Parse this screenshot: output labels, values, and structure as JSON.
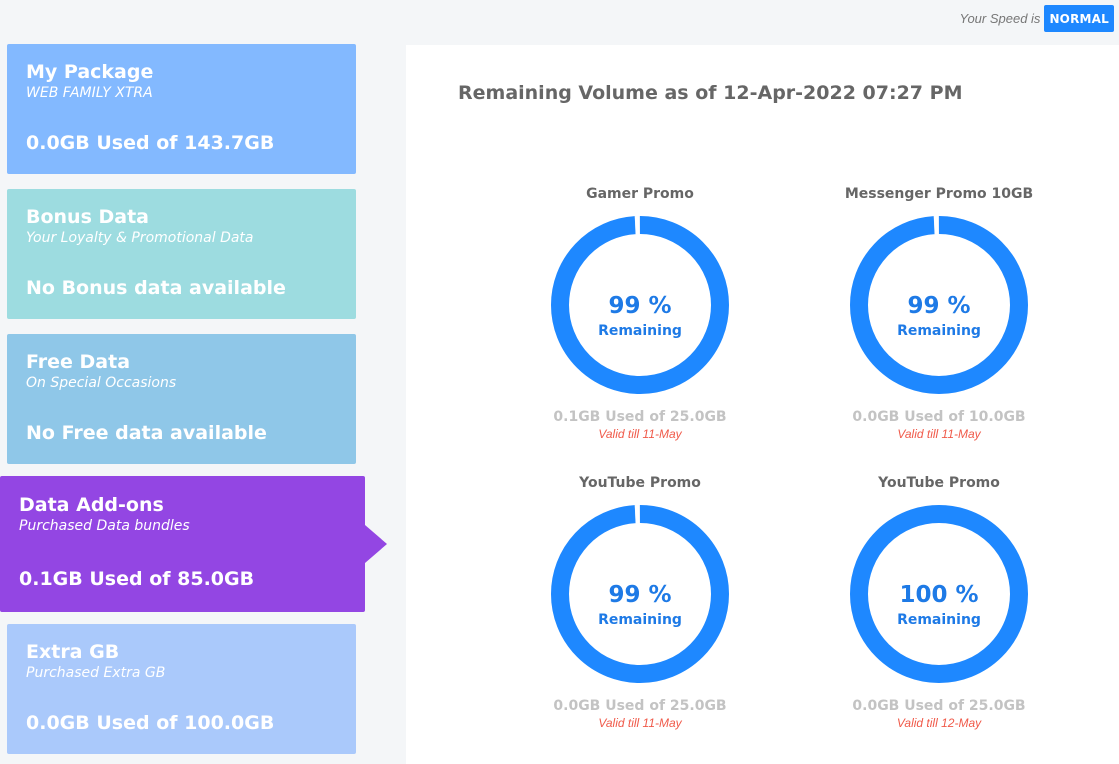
{
  "speed": {
    "label": "Your Speed is",
    "value": "NORMAL",
    "color": "#1e88ff"
  },
  "cards": [
    {
      "title": "My Package",
      "subtitle": "WEB FAMILY XTRA",
      "usage": "0.0GB Used of 143.7GB",
      "color": "#83b9ff"
    },
    {
      "title": "Bonus Data",
      "subtitle": "Your Loyalty & Promotional Data",
      "usage": "No Bonus data available",
      "color": "#9ddce0"
    },
    {
      "title": "Free Data",
      "subtitle": "On Special Occasions",
      "usage": "No Free data available",
      "color": "#8fc7e8"
    },
    {
      "title": "Data Add-ons",
      "subtitle": "Purchased Data bundles",
      "usage": "0.1GB Used of 85.0GB",
      "color": "#9346e3",
      "active": true
    },
    {
      "title": "Extra GB",
      "subtitle": "Purchased Extra GB",
      "usage": "0.0GB Used of 100.0GB",
      "color": "#aac9fb"
    }
  ],
  "panel": {
    "title": "Remaining Volume as of 12-Apr-2022 07:27 PM",
    "promos": [
      {
        "name": "Gamer Promo",
        "percent": "99 %",
        "remaining_label": "Remaining",
        "remaining_fraction": 0.99,
        "usage": "0.1GB Used of 25.0GB",
        "valid": "Valid till 11-May"
      },
      {
        "name": "Messenger Promo 10GB",
        "percent": "99 %",
        "remaining_label": "Remaining",
        "remaining_fraction": 0.99,
        "usage": "0.0GB Used of 10.0GB",
        "valid": "Valid till 11-May"
      },
      {
        "name": "YouTube Promo",
        "percent": "99 %",
        "remaining_label": "Remaining",
        "remaining_fraction": 0.99,
        "usage": "0.0GB Used of 25.0GB",
        "valid": "Valid till 11-May"
      },
      {
        "name": "YouTube Promo",
        "percent": "100 %",
        "remaining_label": "Remaining",
        "remaining_fraction": 1.0,
        "usage": "0.0GB Used of 25.0GB",
        "valid": "Valid till 12-May"
      }
    ],
    "ring_color": "#1e88ff",
    "ring_track_color": "#e3eefc",
    "percent_color": "#1e7ae6"
  }
}
